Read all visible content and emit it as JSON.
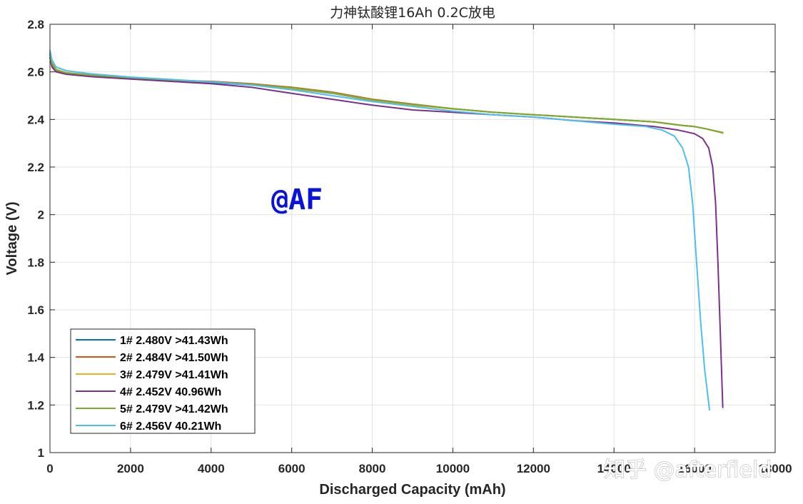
{
  "chart_data": {
    "type": "line",
    "title": "力神钛酸锂16Ah 0.2C放电",
    "xlabel": "Discharged Capacity (mAh)",
    "ylabel": "Voltage (V)",
    "xlim": [
      0,
      18000
    ],
    "ylim": [
      1,
      2.8
    ],
    "xticks": [
      0,
      2000,
      4000,
      6000,
      8000,
      10000,
      12000,
      14000,
      16000,
      18000
    ],
    "xtick_labels": [
      "0",
      "2000",
      "4000",
      "6000",
      "8000",
      "10000",
      "12000",
      "14000",
      "16000",
      "18000"
    ],
    "yticks": [
      1,
      1.2,
      1.4,
      1.6,
      1.8,
      2,
      2.2,
      2.4,
      2.6,
      2.8
    ],
    "ytick_labels": [
      "1",
      "1.2",
      "1.4",
      "1.6",
      "1.8",
      "2",
      "2.2",
      "2.4",
      "2.6",
      "2.8"
    ],
    "grid": true,
    "legend_position": "bottom-left",
    "series": [
      {
        "name": "1# 2.480V >41.43Wh",
        "color": "#0072BD",
        "x": [
          0,
          50,
          150,
          400,
          1000,
          2000,
          3000,
          4000,
          5000,
          6000,
          7000,
          8000,
          9000,
          10000,
          11000,
          12000,
          13000,
          14000,
          15000,
          15700,
          16000,
          16300,
          16700
        ],
        "y": [
          2.68,
          2.64,
          2.61,
          2.595,
          2.585,
          2.575,
          2.565,
          2.555,
          2.545,
          2.53,
          2.51,
          2.48,
          2.46,
          2.445,
          2.43,
          2.42,
          2.41,
          2.4,
          2.39,
          2.375,
          2.37,
          2.36,
          2.345
        ]
      },
      {
        "name": "2# 2.484V >41.50Wh",
        "color": "#D95319",
        "x": [
          0,
          50,
          150,
          400,
          1000,
          2000,
          3000,
          4000,
          5000,
          6000,
          7000,
          8000,
          9000,
          10000,
          11000,
          12000,
          13000,
          14000,
          15000,
          15700,
          16000,
          16300,
          16700
        ],
        "y": [
          2.67,
          2.63,
          2.605,
          2.595,
          2.585,
          2.575,
          2.565,
          2.56,
          2.55,
          2.535,
          2.515,
          2.485,
          2.465,
          2.445,
          2.43,
          2.42,
          2.41,
          2.4,
          2.39,
          2.375,
          2.37,
          2.36,
          2.345
        ]
      },
      {
        "name": "3# 2.479V >41.41Wh",
        "color": "#EDB120",
        "x": [
          0,
          50,
          150,
          400,
          1000,
          2000,
          3000,
          4000,
          5000,
          6000,
          7000,
          8000,
          9000,
          10000,
          11000,
          12000,
          13000,
          14000,
          15000,
          15700,
          16000,
          16300,
          16700
        ],
        "y": [
          2.68,
          2.64,
          2.61,
          2.597,
          2.587,
          2.577,
          2.566,
          2.557,
          2.546,
          2.531,
          2.511,
          2.481,
          2.461,
          2.444,
          2.43,
          2.42,
          2.41,
          2.4,
          2.39,
          2.375,
          2.37,
          2.36,
          2.344
        ]
      },
      {
        "name": "4# 2.452V 40.96Wh",
        "color": "#7E2F8E",
        "x": [
          0,
          50,
          150,
          400,
          1000,
          2000,
          3000,
          4000,
          5000,
          6000,
          7000,
          8000,
          9000,
          10000,
          11000,
          12000,
          13000,
          14000,
          15000,
          15600,
          16000,
          16200,
          16350,
          16450,
          16520,
          16580,
          16640,
          16700
        ],
        "y": [
          2.66,
          2.62,
          2.6,
          2.59,
          2.58,
          2.57,
          2.56,
          2.55,
          2.535,
          2.51,
          2.485,
          2.46,
          2.44,
          2.43,
          2.42,
          2.41,
          2.395,
          2.385,
          2.37,
          2.355,
          2.34,
          2.32,
          2.28,
          2.2,
          2.05,
          1.8,
          1.5,
          1.19
        ]
      },
      {
        "name": "5# 2.479V >41.42Wh",
        "color": "#77AC30",
        "x": [
          0,
          50,
          150,
          400,
          1000,
          2000,
          3000,
          4000,
          5000,
          6000,
          7000,
          8000,
          9000,
          10000,
          11000,
          12000,
          13000,
          14000,
          15000,
          15700,
          16000,
          16300,
          16700
        ],
        "y": [
          2.675,
          2.635,
          2.608,
          2.596,
          2.586,
          2.576,
          2.566,
          2.558,
          2.548,
          2.533,
          2.513,
          2.483,
          2.463,
          2.445,
          2.43,
          2.42,
          2.41,
          2.4,
          2.39,
          2.375,
          2.37,
          2.36,
          2.343
        ]
      },
      {
        "name": "6# 2.456V 40.21Wh",
        "color": "#4DBEEE",
        "x": [
          0,
          50,
          150,
          400,
          1000,
          2000,
          3000,
          4000,
          5000,
          6000,
          7000,
          8000,
          9000,
          10000,
          11000,
          12000,
          13000,
          14000,
          14800,
          15200,
          15500,
          15700,
          15850,
          15950,
          16050,
          16150,
          16250,
          16370
        ],
        "y": [
          2.69,
          2.65,
          2.62,
          2.605,
          2.592,
          2.578,
          2.568,
          2.558,
          2.545,
          2.525,
          2.5,
          2.475,
          2.455,
          2.435,
          2.42,
          2.41,
          2.395,
          2.38,
          2.37,
          2.355,
          2.33,
          2.28,
          2.2,
          2.05,
          1.8,
          1.55,
          1.35,
          1.18
        ]
      }
    ],
    "annotations": [
      "@AF"
    ]
  },
  "watermark": {
    "text": "知乎 @afterfield"
  },
  "colors": {
    "grid": "#e3e3e3",
    "axis": "#262626",
    "annotation": "#0a14d8"
  }
}
